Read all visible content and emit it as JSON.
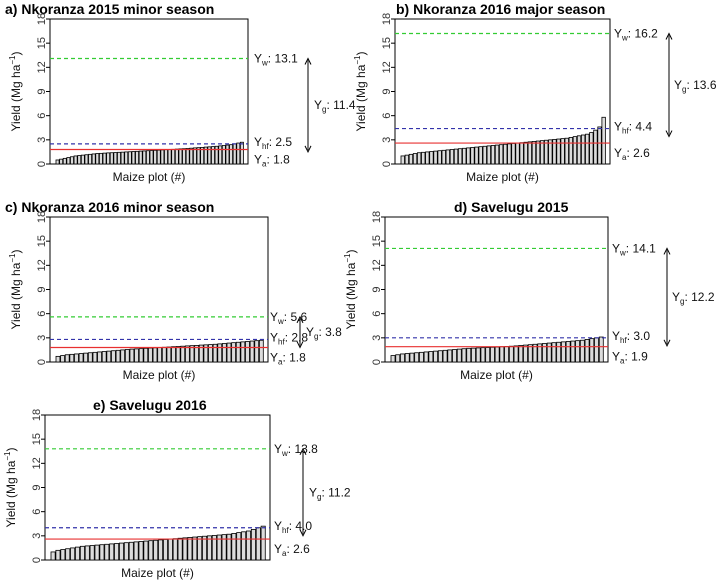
{
  "chart_data": [
    {
      "type": "bar",
      "title": "a) Nkoranza 2015 minor season",
      "xlabel": "Maize plot (#)",
      "ylabel": "Yield (Mg ha",
      "ylabel_sup": "−1",
      "ylabel_close": ")",
      "yticks": [
        "0",
        "3",
        "6",
        "9",
        "12",
        "15",
        "18"
      ],
      "ylim": [
        0,
        18
      ],
      "values": [
        0.5,
        0.6,
        0.7,
        0.8,
        0.9,
        1.0,
        1.05,
        1.1,
        1.15,
        1.2,
        1.25,
        1.3,
        1.32,
        1.35,
        1.38,
        1.4,
        1.42,
        1.45,
        1.47,
        1.5,
        1.52,
        1.55,
        1.57,
        1.6,
        1.62,
        1.65,
        1.67,
        1.7,
        1.72,
        1.75,
        1.78,
        1.8,
        1.82,
        1.85,
        1.88,
        1.9,
        1.93,
        1.96,
        2.0,
        2.03,
        2.06,
        2.1,
        2.13,
        2.16,
        2.2,
        2.25,
        2.3,
        2.35,
        2.4,
        2.5,
        2.6,
        2.7
      ],
      "lines": {
        "yw": 13.1,
        "yhf": 2.5,
        "ya": 1.8
      },
      "labels": {
        "yw_pre": "Y",
        "yw_sub": "w",
        "yw_val": ": 13.1",
        "yhf_pre": "Y",
        "yhf_sub": "hf",
        "yhf_val": ": 2.5",
        "ya_pre": "Y",
        "ya_sub": "a",
        "ya_val": ": 1.8",
        "yg_pre": "Y",
        "yg_sub": "g",
        "yg_val": ": 11.4"
      },
      "colors": {
        "yw": "#33cc33",
        "yhf": "#3333aa",
        "ya": "#e83030"
      }
    },
    {
      "type": "bar",
      "title": "b) Nkoranza 2016 major season",
      "xlabel": "Maize plot (#)",
      "ylabel": "Yield (Mg ha",
      "ylabel_sup": "−1",
      "ylabel_close": ")",
      "yticks": [
        "0",
        "3",
        "6",
        "9",
        "12",
        "15",
        "18"
      ],
      "ylim": [
        0,
        18
      ],
      "values": [
        1.0,
        1.1,
        1.2,
        1.3,
        1.4,
        1.45,
        1.5,
        1.55,
        1.6,
        1.65,
        1.7,
        1.75,
        1.8,
        1.85,
        1.9,
        1.95,
        2.0,
        2.05,
        2.1,
        2.15,
        2.2,
        2.25,
        2.3,
        2.35,
        2.4,
        2.45,
        2.5,
        2.55,
        2.6,
        2.65,
        2.7,
        2.75,
        2.8,
        2.85,
        2.9,
        2.95,
        3.0,
        3.05,
        3.1,
        3.15,
        3.2,
        3.3,
        3.4,
        3.5,
        3.6,
        3.7,
        3.9,
        4.2,
        4.6,
        5.8
      ],
      "lines": {
        "yw": 16.2,
        "yhf": 4.4,
        "ya": 2.6
      },
      "labels": {
        "yw_pre": "Y",
        "yw_sub": "w",
        "yw_val": ": 16.2",
        "yhf_pre": "Y",
        "yhf_sub": "hf",
        "yhf_val": ": 4.4",
        "ya_pre": "Y",
        "ya_sub": "a",
        "ya_val": ": 2.6",
        "yg_pre": "Y",
        "yg_sub": "g",
        "yg_val": ": 13.6"
      },
      "colors": {
        "yw": "#33cc33",
        "yhf": "#3333aa",
        "ya": "#e83030"
      }
    },
    {
      "type": "bar",
      "title": "c) Nkoranza 2016 minor season",
      "xlabel": "Maize plot (#)",
      "ylabel": "Yield (Mg ha",
      "ylabel_sup": "−1",
      "ylabel_close": ")",
      "yticks": [
        "0",
        "3",
        "6",
        "9",
        "12",
        "15",
        "18"
      ],
      "ylim": [
        0,
        18
      ],
      "values": [
        0.7,
        0.8,
        0.9,
        0.95,
        1.0,
        1.05,
        1.1,
        1.15,
        1.2,
        1.25,
        1.3,
        1.35,
        1.4,
        1.45,
        1.5,
        1.55,
        1.6,
        1.63,
        1.66,
        1.7,
        1.73,
        1.76,
        1.8,
        1.83,
        1.86,
        1.9,
        1.93,
        1.96,
        2.0,
        2.03,
        2.06,
        2.1,
        2.13,
        2.16,
        2.2,
        2.25,
        2.3,
        2.35,
        2.4,
        2.45,
        2.5,
        2.55,
        2.6,
        2.65,
        2.7
      ],
      "lines": {
        "yw": 5.6,
        "yhf": 2.8,
        "ya": 1.8
      },
      "labels": {
        "yw_pre": "Y",
        "yw_sub": "w",
        "yw_val": ": 5.6",
        "yhf_pre": "Y",
        "yhf_sub": "hf",
        "yhf_val": ": 2.8",
        "ya_pre": "Y",
        "ya_sub": "a",
        "ya_val": ": 1.8",
        "yg_pre": "Y",
        "yg_sub": "g",
        "yg_val": ": 3.8"
      },
      "colors": {
        "yw": "#33cc33",
        "yhf": "#3333aa",
        "ya": "#e83030"
      }
    },
    {
      "type": "bar",
      "title": "d) Savelugu 2015",
      "xlabel": "Maize plot (#)",
      "ylabel": "Yield (Mg ha",
      "ylabel_sup": "−1",
      "ylabel_close": ")",
      "yticks": [
        "0",
        "3",
        "6",
        "9",
        "12",
        "15",
        "18"
      ],
      "ylim": [
        0,
        18
      ],
      "values": [
        0.8,
        0.9,
        1.0,
        1.05,
        1.1,
        1.15,
        1.2,
        1.25,
        1.3,
        1.35,
        1.4,
        1.45,
        1.5,
        1.55,
        1.6,
        1.65,
        1.7,
        1.72,
        1.75,
        1.78,
        1.8,
        1.83,
        1.86,
        1.9,
        1.93,
        1.96,
        2.0,
        2.05,
        2.1,
        2.15,
        2.2,
        2.25,
        2.3,
        2.35,
        2.4,
        2.45,
        2.5,
        2.55,
        2.6,
        2.65,
        2.7,
        2.8,
        2.9,
        3.0,
        3.1
      ],
      "lines": {
        "yw": 14.1,
        "yhf": 3.0,
        "ya": 1.9
      },
      "labels": {
        "yw_pre": "Y",
        "yw_sub": "w",
        "yw_val": ": 14.1",
        "yhf_pre": "Y",
        "yhf_sub": "hf",
        "yhf_val": ": 3.0",
        "ya_pre": "Y",
        "ya_sub": "a",
        "ya_val": ": 1.9",
        "yg_pre": "Y",
        "yg_sub": "g",
        "yg_val": ": 12.2"
      },
      "colors": {
        "yw": "#33cc33",
        "yhf": "#3333aa",
        "ya": "#e83030"
      }
    },
    {
      "type": "bar",
      "title": "e) Savelugu 2016",
      "xlabel": "Maize plot (#)",
      "ylabel": "Yield (Mg ha",
      "ylabel_sup": "−1",
      "ylabel_close": ")",
      "yticks": [
        "0",
        "3",
        "6",
        "9",
        "12",
        "15",
        "18"
      ],
      "ylim": [
        0,
        18
      ],
      "values": [
        1.0,
        1.2,
        1.3,
        1.4,
        1.5,
        1.6,
        1.7,
        1.75,
        1.8,
        1.85,
        1.9,
        1.95,
        2.0,
        2.05,
        2.1,
        2.15,
        2.2,
        2.25,
        2.3,
        2.35,
        2.4,
        2.45,
        2.5,
        2.55,
        2.6,
        2.65,
        2.7,
        2.75,
        2.8,
        2.85,
        2.9,
        2.95,
        3.0,
        3.05,
        3.1,
        3.15,
        3.2,
        3.3,
        3.4,
        3.5,
        3.6,
        3.8,
        4.0,
        4.2
      ],
      "lines": {
        "yw": 13.8,
        "yhf": 4.0,
        "ya": 2.6
      },
      "labels": {
        "yw_pre": "Y",
        "yw_sub": "w",
        "yw_val": ": 13.8",
        "yhf_pre": "Y",
        "yhf_sub": "hf",
        "yhf_val": ": 4.0",
        "ya_pre": "Y",
        "ya_sub": "a",
        "ya_val": ": 2.6",
        "yg_pre": "Y",
        "yg_sub": "g",
        "yg_val": ": 11.2"
      },
      "colors": {
        "yw": "#33cc33",
        "yhf": "#3333aa",
        "ya": "#e83030"
      }
    }
  ]
}
